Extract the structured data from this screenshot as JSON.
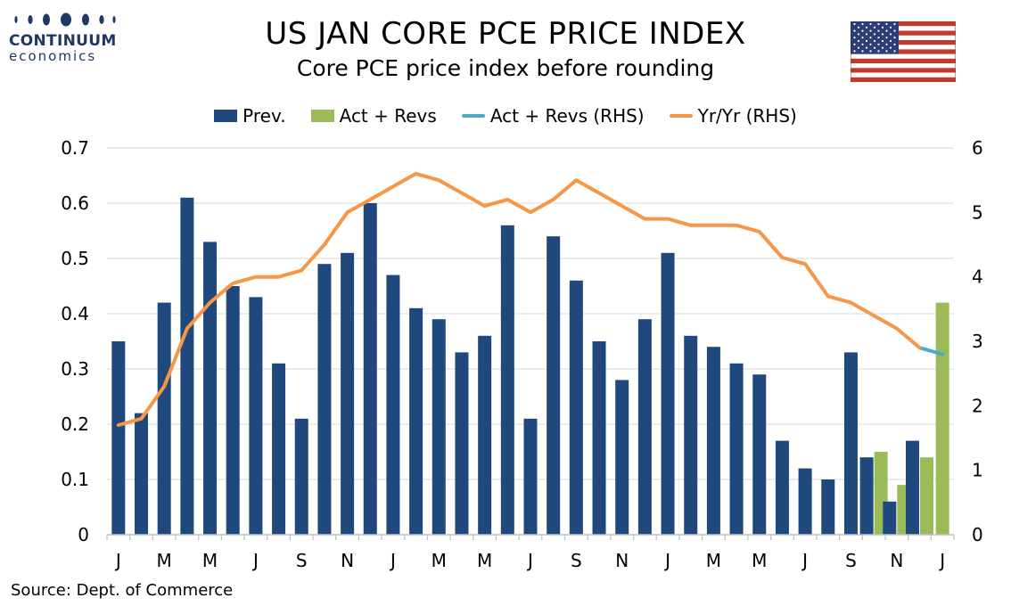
{
  "header": {
    "title": "US JAN CORE PCE PRICE INDEX",
    "subtitle": "Core PCE price index before rounding"
  },
  "logo": {
    "name": "CONTINUUM",
    "sub": "economics",
    "color": "#1f3864"
  },
  "source": "Source: Dept. of Commerce",
  "chart_data": {
    "type": "bar",
    "title": "US JAN CORE PCE PRICE INDEX",
    "subtitle": "Core PCE price index before rounding",
    "x_tick_labels": [
      "J",
      "M",
      "M",
      "J",
      "S",
      "N",
      "J",
      "M",
      "M",
      "J",
      "S",
      "N",
      "J",
      "M",
      "M",
      "J",
      "S",
      "N",
      "J"
    ],
    "n_periods": 37,
    "y_left": {
      "min": 0,
      "max": 0.7,
      "ticks": [
        0,
        0.1,
        0.2,
        0.3,
        0.4,
        0.5,
        0.6,
        0.7
      ]
    },
    "y_right": {
      "min": 0,
      "max": 6,
      "ticks": [
        0,
        1,
        2,
        3,
        4,
        5,
        6
      ]
    },
    "grid": "horizontal",
    "legend_position": "top-center",
    "series": [
      {
        "name": "Prev.",
        "kind": "bar",
        "axis": "left",
        "color": "#1f497d",
        "values": [
          0.35,
          0.22,
          0.42,
          0.61,
          0.53,
          0.45,
          0.43,
          0.31,
          0.21,
          0.49,
          0.51,
          0.6,
          0.47,
          0.41,
          0.39,
          0.33,
          0.36,
          0.56,
          0.21,
          0.54,
          0.46,
          0.35,
          0.28,
          0.39,
          0.51,
          0.36,
          0.34,
          0.31,
          0.29,
          0.17,
          0.12,
          0.1,
          0.33,
          0.14,
          0.06,
          0.17,
          null
        ]
      },
      {
        "name": "Act + Revs",
        "kind": "bar",
        "axis": "left",
        "color": "#9bbb59",
        "values": [
          null,
          null,
          null,
          null,
          null,
          null,
          null,
          null,
          null,
          null,
          null,
          null,
          null,
          null,
          null,
          null,
          null,
          null,
          null,
          null,
          null,
          null,
          null,
          null,
          null,
          null,
          null,
          null,
          null,
          null,
          null,
          null,
          null,
          0.15,
          0.09,
          0.14,
          0.42
        ]
      },
      {
        "name": "Act + Revs (RHS)",
        "kind": "line",
        "axis": "right",
        "color": "#4bacc6",
        "values": [
          null,
          null,
          null,
          null,
          null,
          null,
          null,
          null,
          null,
          null,
          null,
          null,
          null,
          null,
          null,
          null,
          null,
          null,
          null,
          null,
          null,
          null,
          null,
          null,
          null,
          null,
          null,
          null,
          null,
          null,
          null,
          null,
          null,
          null,
          null,
          2.9,
          2.8
        ]
      },
      {
        "name": "Yr/Yr (RHS)",
        "kind": "line",
        "axis": "right",
        "color": "#f79646",
        "values": [
          1.7,
          1.8,
          2.3,
          3.2,
          3.6,
          3.9,
          4.0,
          4.0,
          4.1,
          4.5,
          5.0,
          5.2,
          5.4,
          5.6,
          5.5,
          5.3,
          5.1,
          5.2,
          5.0,
          5.2,
          5.5,
          5.3,
          5.1,
          4.9,
          4.9,
          4.8,
          4.8,
          4.8,
          4.7,
          4.3,
          4.2,
          3.7,
          3.6,
          3.4,
          3.2,
          2.9,
          null
        ]
      }
    ]
  }
}
